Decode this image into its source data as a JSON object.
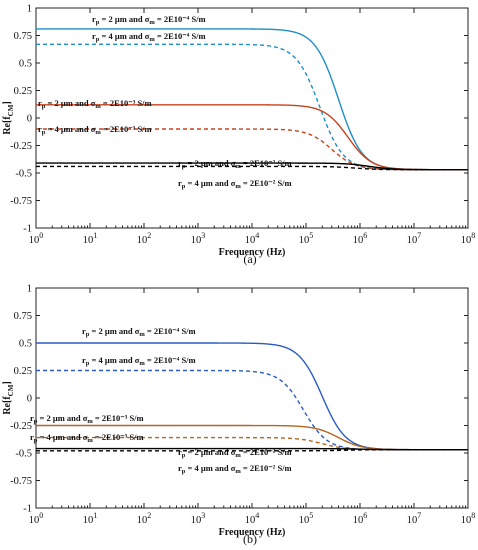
{
  "chart_data": [
    {
      "type": "line",
      "panel_label": "(a)",
      "xlabel": "Frequency (Hz)",
      "ylabel": "Re[f_CM]",
      "x_scale": "log",
      "xlim": [
        1,
        100000000
      ],
      "ylim": [
        -1,
        1
      ],
      "yticks": [
        -1,
        -0.75,
        -0.5,
        -0.25,
        0,
        0.25,
        0.5,
        0.75,
        1
      ],
      "ytick_labels": [
        "-1",
        "-0.75",
        "-0.5",
        "-0.25",
        "0",
        "0.25",
        "0.5",
        "0.75",
        "1"
      ],
      "xticks": [
        1,
        10,
        100,
        1000,
        10000,
        100000,
        1000000,
        10000000,
        100000000
      ],
      "xtick_labels": [
        "10^0",
        "10^1",
        "10^2",
        "10^3",
        "10^4",
        "10^5",
        "10^6",
        "10^7",
        "10^8"
      ],
      "high_freq_limit": -0.47,
      "series": [
        {
          "name": "rp = 2 μm and σm = 2E10⁻⁴ S/m",
          "color": "#1f8fc8",
          "style": "solid",
          "low_value": 0.81,
          "f_cutoff": 400000
        },
        {
          "name": "rp = 4 μm and σm = 2E10⁻⁴ S/m",
          "color": "#1f8fc8",
          "style": "dashed",
          "low_value": 0.67,
          "f_cutoff": 180000
        },
        {
          "name": "rp = 2 μm and σm = 2E10⁻³ S/m",
          "color": "#c8431c",
          "style": "solid",
          "low_value": 0.12,
          "f_cutoff": 600000
        },
        {
          "name": "rp = 4 μm and σm = 2E10⁻³ S/m",
          "color": "#c8431c",
          "style": "dashed",
          "low_value": -0.1,
          "f_cutoff": 300000
        },
        {
          "name": "rp = 2 μm and σm = 2E10⁻² S/m",
          "color": "#000000",
          "style": "solid",
          "low_value": -0.41,
          "f_cutoff": 1500000
        },
        {
          "name": "rp = 4 μm and σm = 2E10⁻² S/m",
          "color": "#000000",
          "style": "dashed",
          "low_value": -0.44,
          "f_cutoff": 800000
        }
      ]
    },
    {
      "type": "line",
      "panel_label": "(b)",
      "xlabel": "Frequency (Hz)",
      "ylabel": "Re[f_CM]",
      "x_scale": "log",
      "xlim": [
        1,
        100000000
      ],
      "ylim": [
        -1,
        1
      ],
      "yticks": [
        -1,
        -0.75,
        -0.5,
        -0.25,
        0,
        0.25,
        0.5,
        0.75,
        1
      ],
      "ytick_labels": [
        "-1",
        "-0.75",
        "-0.5",
        "-0.25",
        "0",
        "0.25",
        "0.5",
        "0.75",
        "1"
      ],
      "xticks": [
        1,
        10,
        100,
        1000,
        10000,
        100000,
        1000000,
        10000000,
        100000000
      ],
      "xtick_labels": [
        "10^0",
        "10^1",
        "10^2",
        "10^3",
        "10^4",
        "10^5",
        "10^6",
        "10^7",
        "10^8"
      ],
      "high_freq_limit": -0.47,
      "series": [
        {
          "name": "rp = 2 μm and σm = 2E10⁻⁴ S/m",
          "color": "#2a5cc4",
          "style": "solid",
          "low_value": 0.5,
          "f_cutoff": 200000
        },
        {
          "name": "rp = 4 μm and σm = 2E10⁻⁴ S/m",
          "color": "#2a5cc4",
          "style": "dashed",
          "low_value": 0.25,
          "f_cutoff": 90000
        },
        {
          "name": "rp = 2 μm and σm = 2E10⁻³ S/m",
          "color": "#b5661f",
          "style": "solid",
          "low_value": -0.25,
          "f_cutoff": 400000
        },
        {
          "name": "rp = 4 μm and σm = 2E10⁻³ S/m",
          "color": "#b5661f",
          "style": "dashed",
          "low_value": -0.36,
          "f_cutoff": 200000
        },
        {
          "name": "rp = 2 μm and σm = 2E10⁻² S/m",
          "color": "#000000",
          "style": "solid",
          "low_value": -0.46,
          "f_cutoff": 1000000
        },
        {
          "name": "rp = 4 μm and σm = 2E10⁻² S/m",
          "color": "#000000",
          "style": "dashed",
          "low_value": -0.48,
          "f_cutoff": 500000
        }
      ]
    }
  ]
}
